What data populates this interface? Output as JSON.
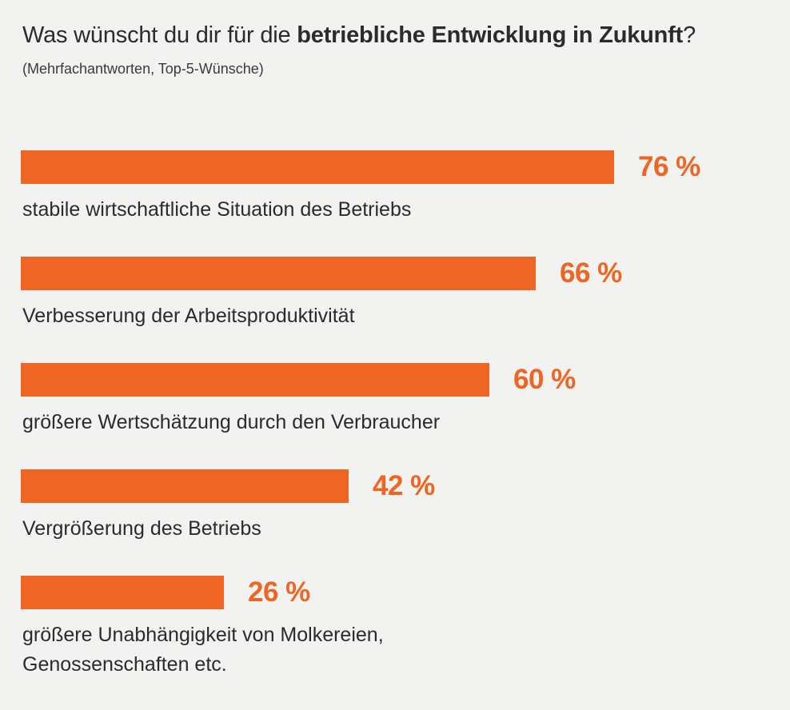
{
  "header": {
    "title_pre": "Was wünscht du dir für die ",
    "title_bold": "betriebliche Entwicklung in Zukunft",
    "title_post": "?",
    "subtitle": "(Mehrfachantworten, Top-5-Wünsche)"
  },
  "colors": {
    "bar": "#ef6523",
    "value_text": "#ef6523"
  },
  "chart_data": {
    "type": "bar",
    "orientation": "horizontal",
    "categories": [
      "stabile wirtschaftliche Situation des Betriebs",
      "Verbesserung der Arbeitsproduktivität",
      "größere Wertschätzung durch den Verbraucher",
      "Vergrößerung des Betriebs",
      "größere Unabhängigkeit von Molkereien, Genossenschaften etc."
    ],
    "values": [
      76,
      66,
      60,
      42,
      26
    ],
    "value_labels": [
      "76 %",
      "66 %",
      "60 %",
      "42 %",
      "26 %"
    ],
    "unit": "%",
    "xlim": [
      0,
      100
    ],
    "grid": false,
    "legend": "none"
  }
}
